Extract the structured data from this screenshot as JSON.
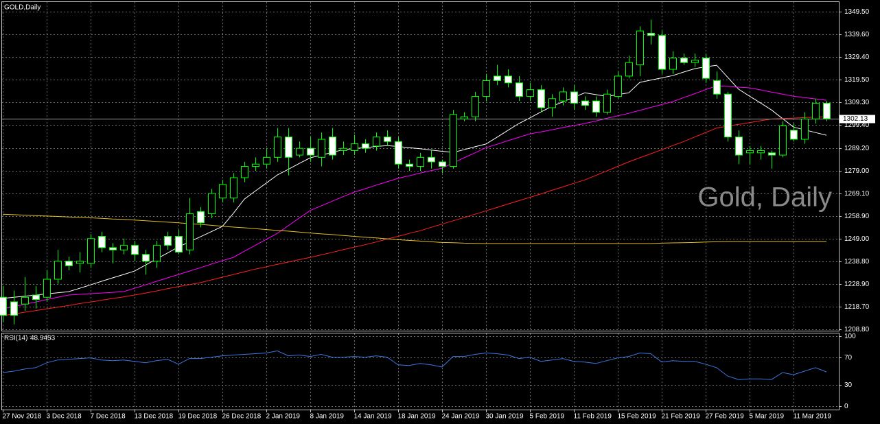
{
  "chart_data": [
    {
      "type": "candlestick",
      "title": "GOLD,Daily",
      "watermark": "Gold, Daily",
      "categories": [
        "27 Nov 2018",
        null,
        null,
        null,
        "3 Dec 2018",
        null,
        null,
        null,
        "7 Dec 2018",
        null,
        null,
        null,
        "13 Dec 2018",
        null,
        null,
        null,
        "19 Dec 2018",
        null,
        null,
        null,
        "26 Dec 2018",
        null,
        null,
        null,
        "2 Jan 2019",
        null,
        null,
        null,
        "8 Jan 2019",
        null,
        null,
        null,
        "14 Jan 2019",
        null,
        null,
        null,
        "18 Jan 2019",
        null,
        null,
        null,
        "24 Jan 2019",
        null,
        null,
        null,
        "30 Jan 2019",
        null,
        null,
        null,
        "5 Feb 2019",
        null,
        null,
        null,
        "11 Feb 2019",
        null,
        null,
        null,
        "15 Feb 2019",
        null,
        null,
        null,
        "21 Feb 2019",
        null,
        null,
        null,
        "27 Feb 2019",
        null,
        null,
        null,
        "5 Mar 2019",
        null,
        null,
        null,
        "11 Mar 2019",
        null,
        null,
        null
      ],
      "open": [
        1223,
        1221,
        1220,
        1224,
        1223,
        1231,
        1239,
        1238,
        1238,
        1250,
        1245,
        1244,
        1246,
        1242,
        1239,
        1250,
        1250,
        1244,
        1261,
        1260,
        1267,
        1267,
        1276,
        1281,
        1282,
        1285,
        1294,
        1286,
        1289,
        1285,
        1294,
        1288,
        1288,
        1291,
        1290,
        1294,
        1292,
        1282,
        1281,
        1285,
        1283,
        1281,
        1302,
        1303,
        1312,
        1321,
        1321,
        1318,
        1312,
        1315,
        1307,
        1310,
        1314,
        1310,
        1310,
        1305,
        1312,
        1321,
        1326,
        1340,
        1339,
        1324,
        1329,
        1327,
        1329,
        1319,
        1313,
        1294,
        1287,
        1287,
        1287,
        1286,
        1297,
        1293,
        1302,
        1309
      ],
      "high": [
        1228,
        1226,
        1232,
        1228,
        1235,
        1244,
        1241,
        1243,
        1251,
        1252,
        1247,
        1249,
        1248,
        1244,
        1248,
        1252,
        1253,
        1267,
        1263,
        1271,
        1275,
        1278,
        1283,
        1285,
        1289,
        1298,
        1298,
        1292,
        1294,
        1296,
        1298,
        1292,
        1295,
        1293,
        1296,
        1297,
        1294,
        1284,
        1287,
        1288,
        1284,
        1306,
        1305,
        1314,
        1322,
        1326,
        1324,
        1321,
        1318,
        1317,
        1313,
        1316,
        1317,
        1312,
        1312,
        1315,
        1323,
        1330,
        1343,
        1346,
        1341,
        1332,
        1331,
        1331,
        1331,
        1323,
        1314,
        1297,
        1290,
        1290,
        1288,
        1301,
        1300,
        1305,
        1311,
        1310
      ],
      "low": [
        1212,
        1211,
        1217,
        1218,
        1221,
        1229,
        1235,
        1234,
        1236,
        1243,
        1238,
        1242,
        1239,
        1233,
        1236,
        1244,
        1242,
        1242,
        1254,
        1258,
        1265,
        1265,
        1274,
        1279,
        1280,
        1283,
        1277,
        1285,
        1283,
        1281,
        1284,
        1286,
        1286,
        1287,
        1288,
        1290,
        1280,
        1279,
        1279,
        1280,
        1278,
        1280,
        1301,
        1301,
        1310,
        1317,
        1316,
        1310,
        1310,
        1305,
        1303,
        1308,
        1306,
        1306,
        1303,
        1304,
        1311,
        1320,
        1321,
        1335,
        1322,
        1322,
        1326,
        1325,
        1318,
        1311,
        1292,
        1282,
        1282,
        1284,
        1280,
        1285,
        1292,
        1291,
        1300,
        1301
      ],
      "close": [
        1215,
        1215,
        1223,
        1222,
        1231,
        1239,
        1237,
        1239,
        1249,
        1245,
        1244,
        1246,
        1242,
        1239,
        1246,
        1246,
        1243,
        1260,
        1256,
        1269,
        1273,
        1276,
        1281,
        1282,
        1285,
        1294,
        1285,
        1289,
        1286,
        1293,
        1286,
        1289,
        1291,
        1289,
        1294,
        1292,
        1282,
        1281,
        1285,
        1283,
        1281,
        1304,
        1303,
        1312,
        1319,
        1319,
        1318,
        1312,
        1315,
        1307,
        1311,
        1314,
        1309,
        1308,
        1305,
        1313,
        1321,
        1327,
        1341,
        1339,
        1324,
        1329,
        1327,
        1328,
        1320,
        1313,
        1294,
        1286,
        1288,
        1288,
        1286,
        1299,
        1293,
        1302,
        1309,
        1302.13
      ],
      "bull_color": "#000000",
      "bear_color": "#ffffff",
      "wick_color": "#00ff00",
      "overlays": [
        {
          "color": "#ffffff",
          "values": [
            1222.5,
            1223.0,
            1223.5,
            1224.0,
            1224.5,
            1225.0,
            1225.5,
            1227.0,
            1228.5,
            1230.1,
            1231.6,
            1233.1,
            1234.6,
            1237.3,
            1240.0,
            1242.6,
            1245.3,
            1247.6,
            1249.8,
            1252.1,
            1254.4,
            1260.2,
            1266.5,
            1270.1,
            1273.6,
            1277.2,
            1279.7,
            1282.3,
            1284.8,
            1286.0,
            1287.2,
            1288.4,
            1288.9,
            1289.3,
            1289.8,
            1290.2,
            1289.8,
            1289.3,
            1288.8,
            1288.2,
            1287.7,
            1287.2,
            1288.4,
            1289.7,
            1290.9,
            1293.9,
            1297.0,
            1300.0,
            1302.5,
            1305.1,
            1307.6,
            1309.6,
            1311.6,
            1313.6,
            1312.8,
            1312.0,
            1312.8,
            1313.6,
            1318.2,
            1319.2,
            1320.2,
            1321.2,
            1322.8,
            1324.3,
            1325.1,
            1325.8,
            1320.5,
            1315.2,
            1312.1,
            1309.1,
            1306.0,
            1302.2,
            1298.4,
            1297.2,
            1296.0,
            1294.8
          ]
        },
        {
          "color": "#ff00ff",
          "values": [
            1217.9,
            1218.9,
            1219.9,
            1220.9,
            1222.0,
            1223.0,
            1224.0,
            1224.3,
            1224.6,
            1224.9,
            1225.2,
            1225.5,
            1227.0,
            1228.5,
            1230.1,
            1231.6,
            1233.1,
            1234.6,
            1236.1,
            1237.7,
            1239.2,
            1240.7,
            1243.4,
            1246.0,
            1248.7,
            1251.3,
            1254.7,
            1258.1,
            1261.5,
            1263.5,
            1265.6,
            1267.6,
            1269.6,
            1271.1,
            1272.7,
            1274.2,
            1275.7,
            1276.8,
            1278.0,
            1279.1,
            1280.2,
            1282.5,
            1284.8,
            1287.0,
            1289.3,
            1290.8,
            1292.4,
            1293.9,
            1295.4,
            1296.3,
            1297.2,
            1298.2,
            1299.1,
            1300.0,
            1301.1,
            1302.3,
            1303.4,
            1304.5,
            1305.8,
            1307.1,
            1308.4,
            1309.7,
            1311.5,
            1313.2,
            1315.0,
            1316.7,
            1316.4,
            1316.1,
            1315.8,
            1314.9,
            1313.9,
            1313.0,
            1312.1,
            1311.5,
            1310.9,
            1310.3
          ]
        },
        {
          "color": "#ff2020",
          "values": [
            1214.9,
            1215.6,
            1216.4,
            1217.1,
            1217.9,
            1218.6,
            1219.4,
            1220.2,
            1220.9,
            1221.7,
            1222.5,
            1223.2,
            1224.0,
            1224.9,
            1225.8,
            1226.8,
            1227.7,
            1228.6,
            1229.5,
            1230.7,
            1231.9,
            1233.1,
            1234.3,
            1235.5,
            1236.5,
            1237.6,
            1238.6,
            1239.7,
            1240.7,
            1241.8,
            1242.9,
            1244.1,
            1245.2,
            1246.3,
            1247.5,
            1248.8,
            1250.0,
            1251.3,
            1252.5,
            1254.0,
            1255.4,
            1256.9,
            1258.3,
            1259.8,
            1261.3,
            1262.8,
            1264.3,
            1265.8,
            1267.3,
            1268.8,
            1270.4,
            1271.9,
            1273.5,
            1275.0,
            1277.0,
            1279.0,
            1281.0,
            1283.0,
            1284.8,
            1286.6,
            1288.4,
            1290.2,
            1292.0,
            1294.0,
            1296.0,
            1298.0,
            1298.8,
            1299.6,
            1300.4,
            1301.2,
            1302.0,
            1302.2,
            1302.4,
            1302.6,
            1302.8,
            1303.0
          ]
        },
        {
          "color": "#e8c020",
          "values": [
            1259.8,
            1259.6,
            1259.4,
            1259.2,
            1259.0,
            1258.8,
            1258.6,
            1258.4,
            1258.2,
            1258.0,
            1257.7,
            1257.5,
            1257.2,
            1256.9,
            1256.6,
            1256.3,
            1256.0,
            1255.6,
            1255.3,
            1254.9,
            1254.5,
            1254.1,
            1253.8,
            1253.4,
            1253.0,
            1252.6,
            1252.3,
            1251.9,
            1251.5,
            1251.1,
            1250.8,
            1250.4,
            1250.0,
            1249.6,
            1249.3,
            1248.9,
            1248.5,
            1248.2,
            1247.9,
            1247.6,
            1247.3,
            1247.2,
            1247.0,
            1246.9,
            1246.8,
            1246.8,
            1246.8,
            1246.8,
            1246.8,
            1246.8,
            1246.8,
            1246.8,
            1246.8,
            1246.8,
            1246.8,
            1246.8,
            1246.8,
            1246.8,
            1246.8,
            1246.8,
            1247.0,
            1247.1,
            1247.2,
            1247.3,
            1247.5,
            1247.6,
            1247.7,
            1247.7,
            1247.7,
            1247.7,
            1247.7,
            1247.7,
            1247.7,
            1247.7,
            1247.7,
            1247.7
          ]
        }
      ],
      "last_price": 1302.13,
      "ylim": [
        1208.2,
        1353.8
      ],
      "yticks": [
        {
          "value": 1349.5,
          "label": "1349.50"
        },
        {
          "value": 1339.6,
          "label": "1339.60"
        },
        {
          "value": 1329.4,
          "label": "1329.40"
        },
        {
          "value": 1319.5,
          "label": "1319.50"
        },
        {
          "value": 1309.3,
          "label": "1309.30"
        },
        {
          "value": 1299.4,
          "label": "1299.40"
        },
        {
          "value": 1289.2,
          "label": "1289.20"
        },
        {
          "value": 1279,
          "label": "1279.00"
        },
        {
          "value": 1269.1,
          "label": "1269.10"
        },
        {
          "value": 1258.9,
          "label": "1258.90"
        },
        {
          "value": 1249,
          "label": "1249.00"
        },
        {
          "value": 1238.8,
          "label": "1238.80"
        },
        {
          "value": 1228.9,
          "label": "1228.90"
        },
        {
          "value": 1218.7,
          "label": "1218.70"
        },
        {
          "value": 1208.8,
          "label": "1208.80"
        }
      ],
      "grid": true
    },
    {
      "type": "line",
      "title": "RSI(14)",
      "values": [
        48,
        50,
        53,
        55,
        62,
        66,
        67,
        68,
        69,
        66,
        65,
        66,
        64,
        62,
        65,
        67,
        60,
        68,
        68,
        70,
        72,
        73,
        74,
        75,
        76,
        79,
        72,
        73,
        71,
        74,
        70,
        70,
        71,
        70,
        72,
        70,
        59,
        58,
        61,
        59,
        56,
        71,
        71,
        74,
        76,
        75,
        73,
        68,
        70,
        64,
        66,
        68,
        64,
        63,
        61,
        65,
        69,
        71,
        76,
        75,
        63,
        65,
        64,
        64,
        60,
        55,
        43,
        38,
        39,
        39,
        38,
        48,
        45,
        50,
        55,
        48.9453
      ],
      "color": "#3c78e0",
      "ylim": [
        0,
        100
      ],
      "yticks": [
        100,
        70,
        30,
        0
      ],
      "grid": true
    }
  ]
}
